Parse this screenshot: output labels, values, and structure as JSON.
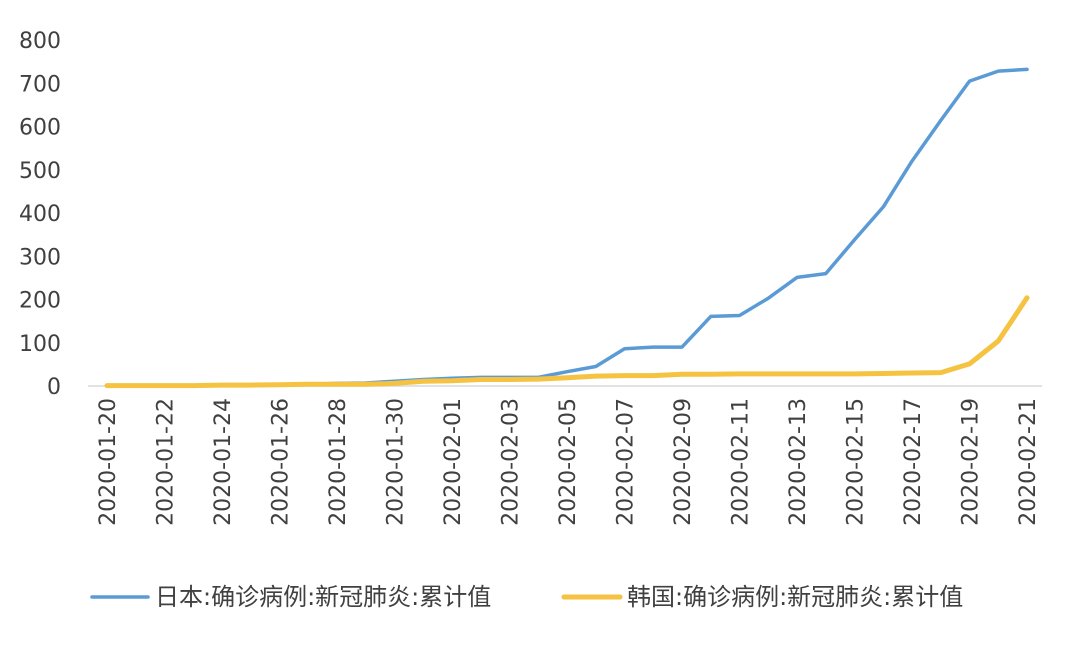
{
  "chart_data": {
    "type": "line",
    "title": "",
    "xlabel": "",
    "ylabel": "",
    "ylim": [
      0,
      800
    ],
    "yticks": [
      0,
      100,
      200,
      300,
      400,
      500,
      600,
      700,
      800
    ],
    "x": [
      "2020-01-20",
      "2020-01-21",
      "2020-01-22",
      "2020-01-23",
      "2020-01-24",
      "2020-01-25",
      "2020-01-26",
      "2020-01-27",
      "2020-01-28",
      "2020-01-29",
      "2020-01-30",
      "2020-01-31",
      "2020-02-01",
      "2020-02-02",
      "2020-02-03",
      "2020-02-04",
      "2020-02-05",
      "2020-02-06",
      "2020-02-07",
      "2020-02-08",
      "2020-02-09",
      "2020-02-10",
      "2020-02-11",
      "2020-02-12",
      "2020-02-13",
      "2020-02-14",
      "2020-02-15",
      "2020-02-16",
      "2020-02-17",
      "2020-02-18",
      "2020-02-19",
      "2020-02-20",
      "2020-02-21"
    ],
    "xtick_labels": [
      "2020-01-20",
      "2020-01-22",
      "2020-01-24",
      "2020-01-26",
      "2020-01-28",
      "2020-01-30",
      "2020-02-01",
      "2020-02-03",
      "2020-02-05",
      "2020-02-07",
      "2020-02-09",
      "2020-02-11",
      "2020-02-13",
      "2020-02-15",
      "2020-02-17",
      "2020-02-19",
      "2020-02-21"
    ],
    "grid": false,
    "legend_position": "bottom",
    "series": [
      {
        "name": "日本:确诊病例:新冠肺炎:累计值",
        "color": "#5b9bd5",
        "values": [
          1,
          1,
          1,
          1,
          2,
          3,
          4,
          4,
          6,
          7,
          11,
          15,
          18,
          20,
          20,
          20,
          33,
          45,
          86,
          90,
          90,
          161,
          163,
          203,
          251,
          260,
          338,
          414,
          520,
          614,
          705,
          728,
          732
        ]
      },
      {
        "name": "韩国:确诊病例:新冠肺炎:累计值",
        "color": "#f5c242",
        "values": [
          1,
          1,
          1,
          1,
          2,
          2,
          3,
          4,
          4,
          4,
          6,
          11,
          12,
          15,
          15,
          16,
          19,
          23,
          24,
          24,
          27,
          27,
          28,
          28,
          28,
          28,
          28,
          29,
          30,
          31,
          51,
          104,
          204
        ]
      }
    ]
  }
}
